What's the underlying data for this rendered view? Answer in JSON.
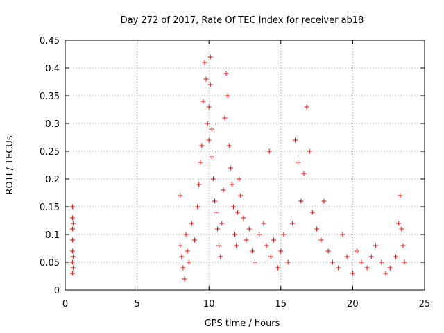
{
  "chart_data": {
    "type": "scatter",
    "title": "Day 272 of 2017, Rate Of TEC Index for receiver ab18",
    "xlabel": "GPS time / hours",
    "ylabel": "ROTI / TECUs",
    "xlim": [
      0,
      25
    ],
    "ylim": [
      0,
      0.45
    ],
    "x_ticks": [
      0,
      5,
      10,
      15,
      20,
      25
    ],
    "x_tick_labels": [
      "0",
      "5",
      "10",
      "15",
      "20",
      "25"
    ],
    "y_ticks": [
      0,
      0.05,
      0.1,
      0.15,
      0.2,
      0.25,
      0.3,
      0.35,
      0.4,
      0.45
    ],
    "y_tick_labels": [
      "0",
      "0.05",
      "0.1",
      "0.15",
      "0.2",
      "0.25",
      "0.3",
      "0.35",
      "0.4",
      "0.45"
    ],
    "grid": true,
    "marker": "+",
    "marker_color": "#ff0000",
    "series": [
      {
        "name": "ROTI",
        "x": [
          0.5,
          0.5,
          0.5,
          0.5,
          0.5,
          0.5,
          0.5,
          0.55,
          0.55,
          0.55,
          8.0,
          8.0,
          8.1,
          8.2,
          8.3,
          8.4,
          8.5,
          8.6,
          8.8,
          9.0,
          9.2,
          9.3,
          9.4,
          9.5,
          9.6,
          9.7,
          9.8,
          9.9,
          10.0,
          10.0,
          10.1,
          10.1,
          10.2,
          10.2,
          10.3,
          10.4,
          10.5,
          10.6,
          10.7,
          10.8,
          10.9,
          11.0,
          11.1,
          11.2,
          11.3,
          11.4,
          11.5,
          11.6,
          11.7,
          11.8,
          11.9,
          12.0,
          12.1,
          12.2,
          12.4,
          12.6,
          12.8,
          13.0,
          13.2,
          13.5,
          13.8,
          14.0,
          14.2,
          14.3,
          14.5,
          14.8,
          15.0,
          15.2,
          15.5,
          15.8,
          16.0,
          16.2,
          16.4,
          16.6,
          16.8,
          17.0,
          17.2,
          17.5,
          17.8,
          18.0,
          18.3,
          18.6,
          19.0,
          19.3,
          19.6,
          20.0,
          20.3,
          20.6,
          21.0,
          21.3,
          21.6,
          22.0,
          22.3,
          22.6,
          23.0,
          23.2,
          23.3,
          23.4,
          23.5,
          23.6
        ],
        "y": [
          0.15,
          0.13,
          0.11,
          0.09,
          0.07,
          0.05,
          0.03,
          0.12,
          0.04,
          0.06,
          0.17,
          0.08,
          0.06,
          0.04,
          0.02,
          0.1,
          0.07,
          0.05,
          0.12,
          0.09,
          0.15,
          0.19,
          0.23,
          0.26,
          0.34,
          0.41,
          0.38,
          0.3,
          0.27,
          0.33,
          0.42,
          0.37,
          0.29,
          0.24,
          0.2,
          0.16,
          0.14,
          0.11,
          0.08,
          0.06,
          0.12,
          0.18,
          0.31,
          0.39,
          0.35,
          0.26,
          0.22,
          0.19,
          0.15,
          0.1,
          0.08,
          0.14,
          0.2,
          0.17,
          0.13,
          0.09,
          0.11,
          0.07,
          0.05,
          0.1,
          0.12,
          0.08,
          0.25,
          0.06,
          0.09,
          0.04,
          0.07,
          0.1,
          0.05,
          0.12,
          0.27,
          0.23,
          0.16,
          0.21,
          0.33,
          0.25,
          0.14,
          0.11,
          0.09,
          0.16,
          0.07,
          0.05,
          0.04,
          0.1,
          0.06,
          0.03,
          0.07,
          0.05,
          0.04,
          0.06,
          0.08,
          0.05,
          0.03,
          0.04,
          0.06,
          0.12,
          0.17,
          0.11,
          0.08,
          0.05
        ]
      }
    ]
  }
}
